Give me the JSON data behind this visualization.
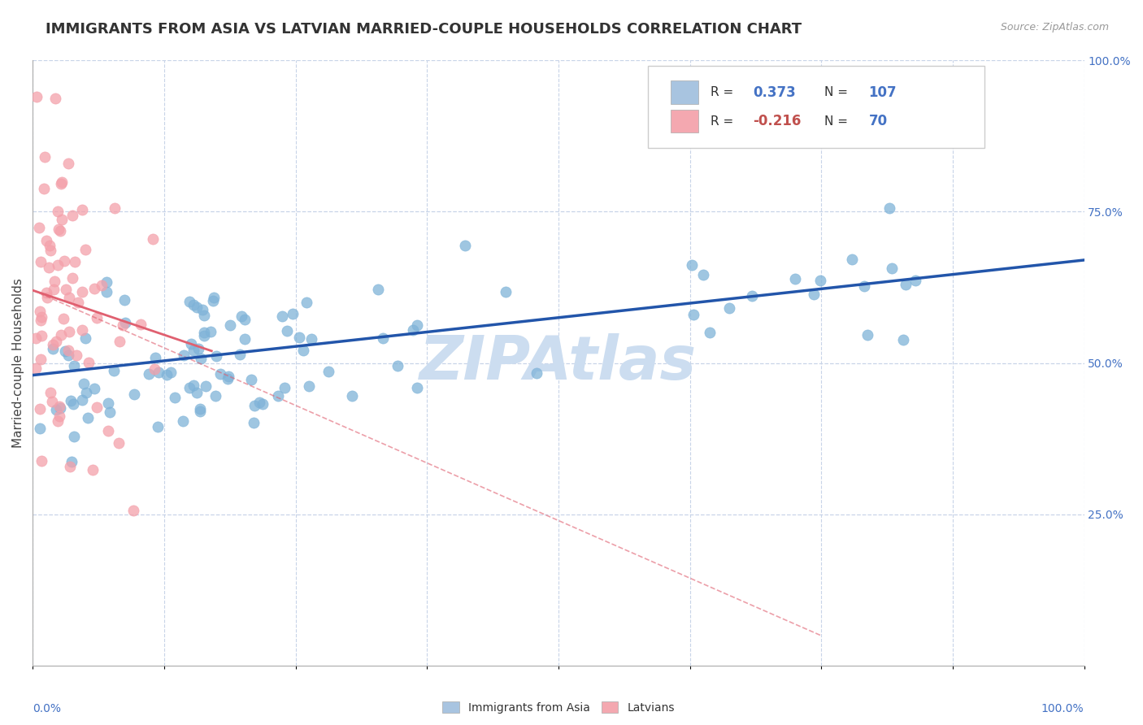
{
  "title": "IMMIGRANTS FROM ASIA VS LATVIAN MARRIED-COUPLE HOUSEHOLDS CORRELATION CHART",
  "source": "Source: ZipAtlas.com",
  "ylabel": "Married-couple Households",
  "right_yticks": [
    0.25,
    0.5,
    0.75,
    1.0
  ],
  "right_yticklabels": [
    "25.0%",
    "50.0%",
    "75.0%",
    "100.0%"
  ],
  "legend_entries": [
    {
      "label": "Immigrants from Asia",
      "color": "#a8c4e0"
    },
    {
      "label": "Latvians",
      "color": "#f4a8b0"
    }
  ],
  "blue_scatter_color": "#7fb3d8",
  "pink_scatter_color": "#f4a0aa",
  "blue_line_color": "#2255aa",
  "pink_line_color": "#e06070",
  "background_color": "#ffffff",
  "grid_color": "#c8d4e8",
  "watermark_text": "ZIPAtlas",
  "watermark_color": "#ccddf0",
  "title_fontsize": 13,
  "axis_label_fontsize": 11,
  "tick_fontsize": 10,
  "R_blue": 0.373,
  "N_blue": 107,
  "R_pink": -0.216,
  "N_pink": 70,
  "seed_blue": 12,
  "seed_pink": 55
}
